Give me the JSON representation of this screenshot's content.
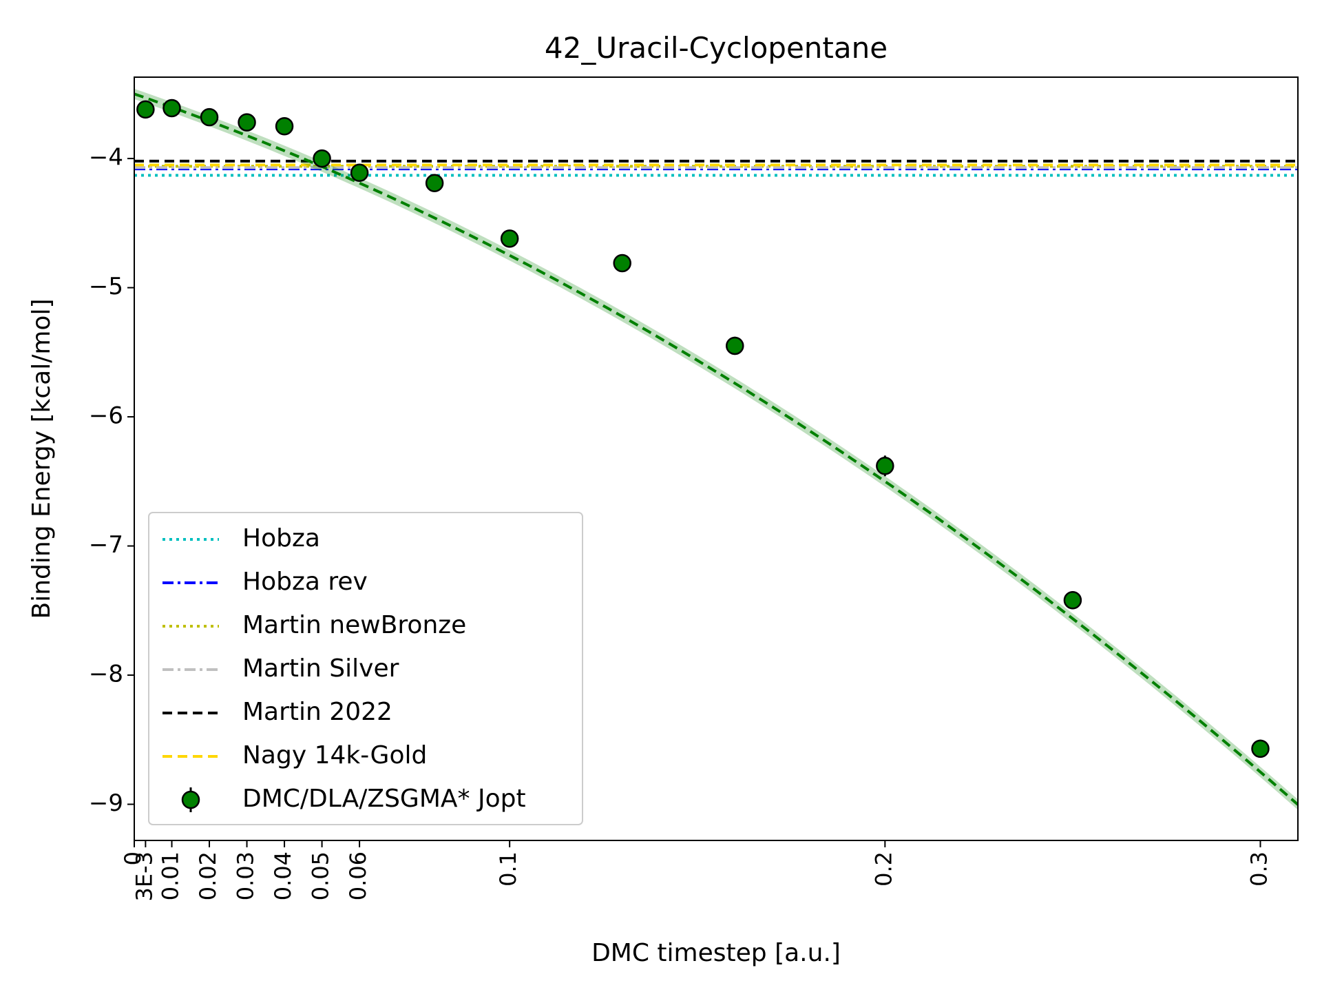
{
  "chart_data": {
    "type": "scatter",
    "title": "42_Uracil-Cyclopentane",
    "xlabel": "DMC timestep [a.u.]",
    "ylabel": "Binding Energy [kcal/mol]",
    "xlim": [
      0,
      0.31
    ],
    "ylim": [
      -9.28,
      -3.37
    ],
    "grid": false,
    "legend_position": "lower-left",
    "x_ticks": [
      {
        "value": 0,
        "label": "0"
      },
      {
        "value": 0.003,
        "label": "3E-3"
      },
      {
        "value": 0.01,
        "label": "0.01"
      },
      {
        "value": 0.02,
        "label": "0.02"
      },
      {
        "value": 0.03,
        "label": "0.03"
      },
      {
        "value": 0.04,
        "label": "0.04"
      },
      {
        "value": 0.05,
        "label": "0.05"
      },
      {
        "value": 0.06,
        "label": "0.06"
      },
      {
        "value": 0.1,
        "label": "0.1"
      },
      {
        "value": 0.2,
        "label": "0.2"
      },
      {
        "value": 0.3,
        "label": "0.3"
      }
    ],
    "y_ticks": [
      {
        "value": -4,
        "label": "−4"
      },
      {
        "value": -5,
        "label": "−5"
      },
      {
        "value": -6,
        "label": "−6"
      },
      {
        "value": -7,
        "label": "−7"
      },
      {
        "value": -8,
        "label": "−8"
      },
      {
        "value": -9,
        "label": "−9"
      }
    ],
    "reference_lines": [
      {
        "name": "Hobza",
        "y": -4.13,
        "color": "#00bfbf",
        "dash": "dotted"
      },
      {
        "name": "Hobza rev",
        "y": -4.08,
        "color": "#0000ff",
        "dash": "dashdot"
      },
      {
        "name": "Martin newBronze",
        "y": -4.06,
        "color": "#bfbf00",
        "dash": "dotted"
      },
      {
        "name": "Martin Silver",
        "y": -4.07,
        "color": "#c0c0c0",
        "dash": "dashdot"
      },
      {
        "name": "Martin 2022",
        "y": -4.02,
        "color": "#000000",
        "dash": "dashed"
      },
      {
        "name": "Nagy 14k-Gold",
        "y": -4.05,
        "color": "#ffd700",
        "dash": "dashed"
      }
    ],
    "series": [
      {
        "name": "DMC/DLA/ZSGMA* Jopt",
        "color": "#008000",
        "x": [
          0.003,
          0.01,
          0.02,
          0.03,
          0.04,
          0.05,
          0.06,
          0.08,
          0.1,
          0.13,
          0.16,
          0.2,
          0.25,
          0.3
        ],
        "y": [
          -3.62,
          -3.61,
          -3.68,
          -3.72,
          -3.75,
          -4.0,
          -4.11,
          -4.19,
          -4.62,
          -4.81,
          -5.45,
          -6.38,
          -7.42,
          -8.57
        ],
        "yerr": [
          0.03,
          0.03,
          0.04,
          0.04,
          0.05,
          0.03,
          0.03,
          0.04,
          0.04,
          0.05,
          0.07,
          0.08,
          0.07,
          0.07
        ]
      }
    ],
    "fit": {
      "color": "#008000",
      "band_color": "#008000",
      "x_range": [
        0,
        0.31
      ],
      "coefficients": [
        -3.5,
        -10.0,
        -25.0
      ],
      "band_halfwidth": 0.04
    }
  }
}
